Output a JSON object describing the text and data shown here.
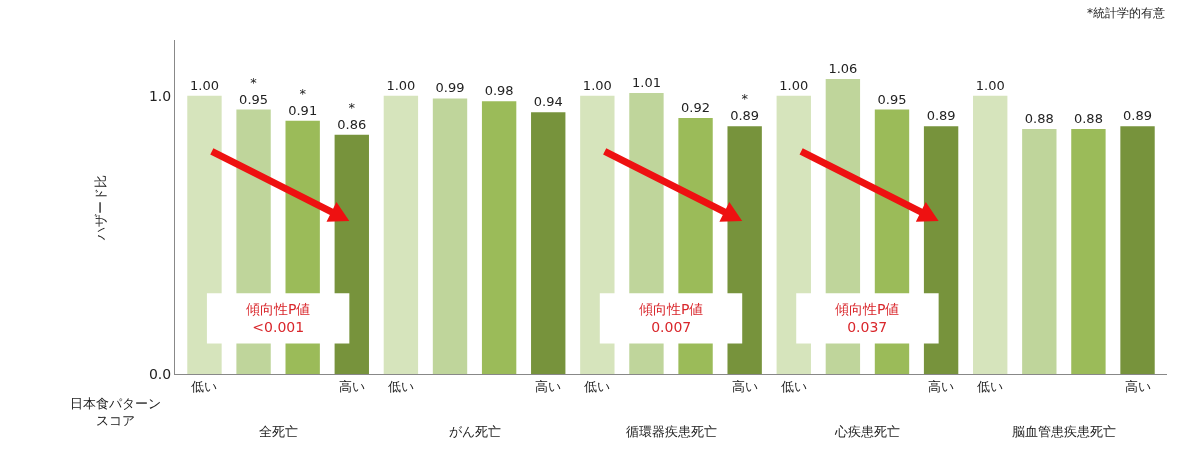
{
  "chart_data": {
    "type": "bar",
    "ylabel": "ハザード比",
    "xlabel": "日本食パターンスコア",
    "categories": [
      "低い",
      null,
      null,
      "高い",
      "低い",
      null,
      null,
      "高い",
      "低い",
      null,
      null,
      "高い",
      "低い",
      null,
      null,
      "高い",
      "低い",
      null,
      null,
      "高い"
    ],
    "values": [
      1.0,
      0.95,
      0.91,
      0.86,
      1.0,
      0.99,
      0.98,
      0.94,
      1.0,
      1.01,
      0.92,
      0.89,
      1.0,
      1.06,
      0.95,
      0.89,
      1.0,
      0.88,
      0.88,
      0.89
    ],
    "colors": [
      "#d6e4bc",
      "#bfd59b",
      "#9bbb59",
      "#77933c",
      "#d6e4bc",
      "#bfd59b",
      "#9bbb59",
      "#77933c",
      "#d6e4bc",
      "#bfd59b",
      "#9bbb59",
      "#77933c",
      "#d6e4bc",
      "#bfd59b",
      "#9bbb59",
      "#77933c",
      "#d6e4bc",
      "#bfd59b",
      "#9bbb59",
      "#77933c"
    ],
    "value_labels": [
      "1.00",
      "*\n0.95",
      "*\n0.91",
      "*\n0.86",
      "1.00",
      "0.99",
      "0.98",
      "0.94",
      "1.00",
      "1.01",
      "0.92",
      "*\n0.89",
      "1.00",
      "1.06",
      "0.95",
      "0.89",
      "1.00",
      "0.88",
      "0.88",
      "0.89"
    ],
    "ylim": [
      0,
      1.2
    ],
    "yticks": [
      {
        "value": 0,
        "label": "0.0"
      },
      {
        "value": 1,
        "label": "1.0"
      }
    ],
    "annotations": [
      "全死亡",
      "がん死亡",
      "循環器疾患死亡",
      "心疾患死亡",
      "脳血管患疾患死亡",
      "傾向性P値\n<0.001",
      "傾向性P値\n0.007",
      "傾向性P値\n0.037",
      "*統計学的有意"
    ]
  }
}
